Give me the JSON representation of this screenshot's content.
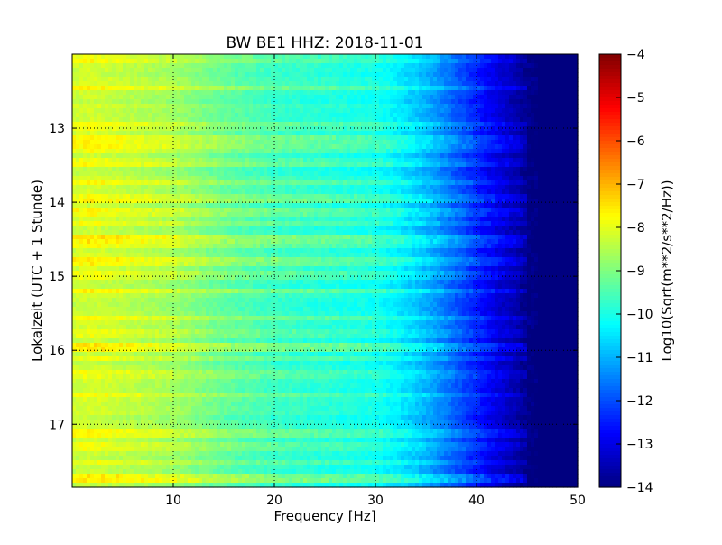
{
  "chart_data": {
    "type": "heatmap",
    "title": "BW BE1 HHZ: 2018-11-01",
    "xlabel": "Frequency [Hz]",
    "ylabel": "Lokalzeit (UTC + 1 Stunde)",
    "xlim": [
      0,
      50
    ],
    "ylim": [
      12.0,
      17.85
    ],
    "y_inverted": true,
    "x_ticks": [
      10,
      20,
      30,
      40,
      50
    ],
    "x_tick_labels": [
      "10",
      "20",
      "30",
      "40",
      "50"
    ],
    "y_ticks": [
      13,
      14,
      15,
      16,
      17
    ],
    "y_tick_labels": [
      "13",
      "14",
      "15",
      "16",
      "17"
    ],
    "grid": true,
    "colormap": "jet",
    "colorbar": {
      "label": "Log10(Sqrt(m**2/s**2/Hz))",
      "min": -14,
      "max": -4,
      "ticks": [
        -4,
        -5,
        -6,
        -7,
        -8,
        -9,
        -10,
        -11,
        -12,
        -13,
        -14
      ],
      "tick_labels": [
        "−4",
        "−5",
        "−6",
        "−7",
        "−8",
        "−9",
        "−10",
        "−11",
        "−12",
        "−13",
        "−14"
      ]
    },
    "spectral_profile": {
      "frequency_hz": [
        0,
        2,
        5,
        10,
        15,
        20,
        25,
        30,
        32,
        34,
        36,
        38,
        40,
        42,
        44,
        45,
        46,
        50
      ],
      "level_log10": [
        -8.3,
        -8.2,
        -8.4,
        -8.7,
        -9.3,
        -9.7,
        -9.9,
        -10.1,
        -10.4,
        -10.8,
        -11.3,
        -11.9,
        -12.5,
        -13.1,
        -13.6,
        -13.9,
        -14.0,
        -14.0
      ]
    },
    "bright_bands": [
      {
        "time": 12.07,
        "level_offset": 0.5
      },
      {
        "time": 12.45,
        "level_offset": 0.6
      },
      {
        "time": 12.97,
        "level_offset": 0.5
      },
      {
        "time": 13.15,
        "level_offset": 0.7
      },
      {
        "time": 13.28,
        "level_offset": 0.6
      },
      {
        "time": 13.47,
        "level_offset": 0.5
      },
      {
        "time": 13.73,
        "level_offset": 0.5
      },
      {
        "time": 13.95,
        "level_offset": 0.6
      },
      {
        "time": 14.12,
        "level_offset": 0.6
      },
      {
        "time": 14.28,
        "level_offset": 0.5
      },
      {
        "time": 14.5,
        "level_offset": 0.9
      },
      {
        "time": 14.6,
        "level_offset": 0.5
      },
      {
        "time": 14.79,
        "level_offset": 0.7
      },
      {
        "time": 14.98,
        "level_offset": 0.5
      },
      {
        "time": 15.2,
        "level_offset": 0.8
      },
      {
        "time": 15.55,
        "level_offset": 0.5
      },
      {
        "time": 15.78,
        "level_offset": 0.5
      },
      {
        "time": 15.95,
        "level_offset": 0.9
      },
      {
        "time": 16.1,
        "level_offset": 0.5
      },
      {
        "time": 16.33,
        "level_offset": 0.5
      },
      {
        "time": 16.6,
        "level_offset": 0.5
      },
      {
        "time": 17.12,
        "level_offset": 0.5
      },
      {
        "time": 17.3,
        "level_offset": 0.5
      },
      {
        "time": 17.52,
        "level_offset": 0.5
      },
      {
        "time": 17.72,
        "level_offset": 0.9
      }
    ]
  }
}
